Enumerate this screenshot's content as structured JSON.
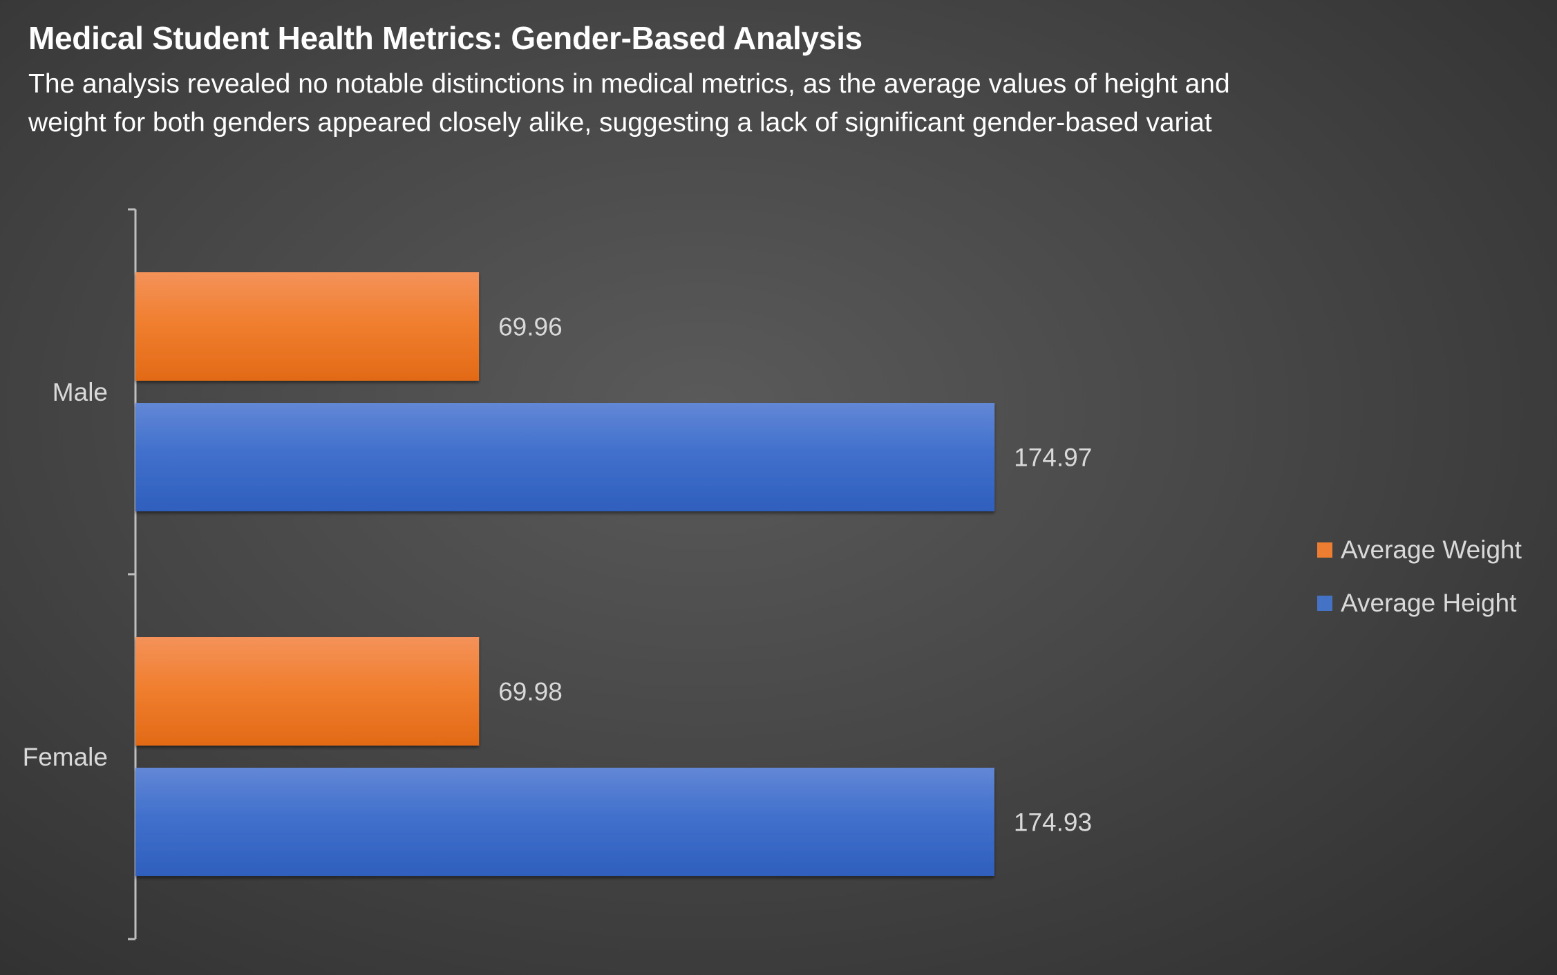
{
  "chart_data": {
    "type": "bar",
    "orientation": "horizontal",
    "title": "Medical Student Health Metrics: Gender-Based Analysis",
    "subtitle": "The analysis revealed no notable distinctions in medical metrics, as the average values of height and weight for both genders appeared closely alike, suggesting a lack of significant gender-based variat",
    "categories": [
      "Male",
      "Female"
    ],
    "series": [
      {
        "name": "Average Weight",
        "color": "#ed7d31",
        "values": [
          69.96,
          69.98
        ]
      },
      {
        "name": "Average Height",
        "color": "#4472c4",
        "values": [
          174.97,
          174.93
        ]
      }
    ],
    "xlim": [
      0,
      200
    ],
    "grid": false,
    "legend_position": "right",
    "data_labels": true
  }
}
